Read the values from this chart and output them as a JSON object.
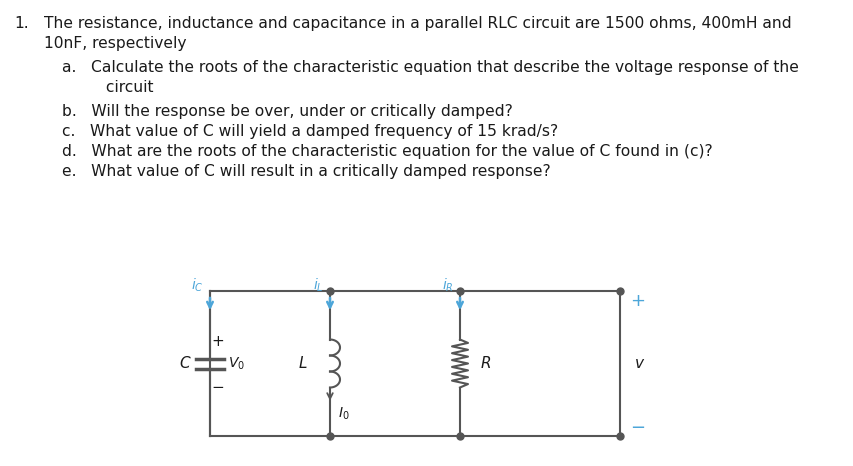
{
  "bg_color": "#ffffff",
  "text_color": "#1a1a1a",
  "circuit_color": "#555555",
  "arrow_color": "#4da6d9",
  "title_num": "1.",
  "main_text_line1": "The resistance, inductance and capacitance in a parallel RLC circuit are 1500 ohms, 400mH and",
  "main_text_line2": "10nF, respectively",
  "item_a": "a.   Calculate the roots of the characteristic equation that describe the voltage response of the",
  "item_a2": "         circuit",
  "item_b": "b.   Will the response be over, under or critically damped?",
  "item_c": "c.   What value of C will yield a damped frequency of 15 krad/s?",
  "item_d": "d.   What are the roots of the characteristic equation for the value of C found in (c)?",
  "item_e": "e.   What value of C will result in a critically damped response?",
  "figsize": [
    8.54,
    4.66
  ],
  "dpi": 100
}
